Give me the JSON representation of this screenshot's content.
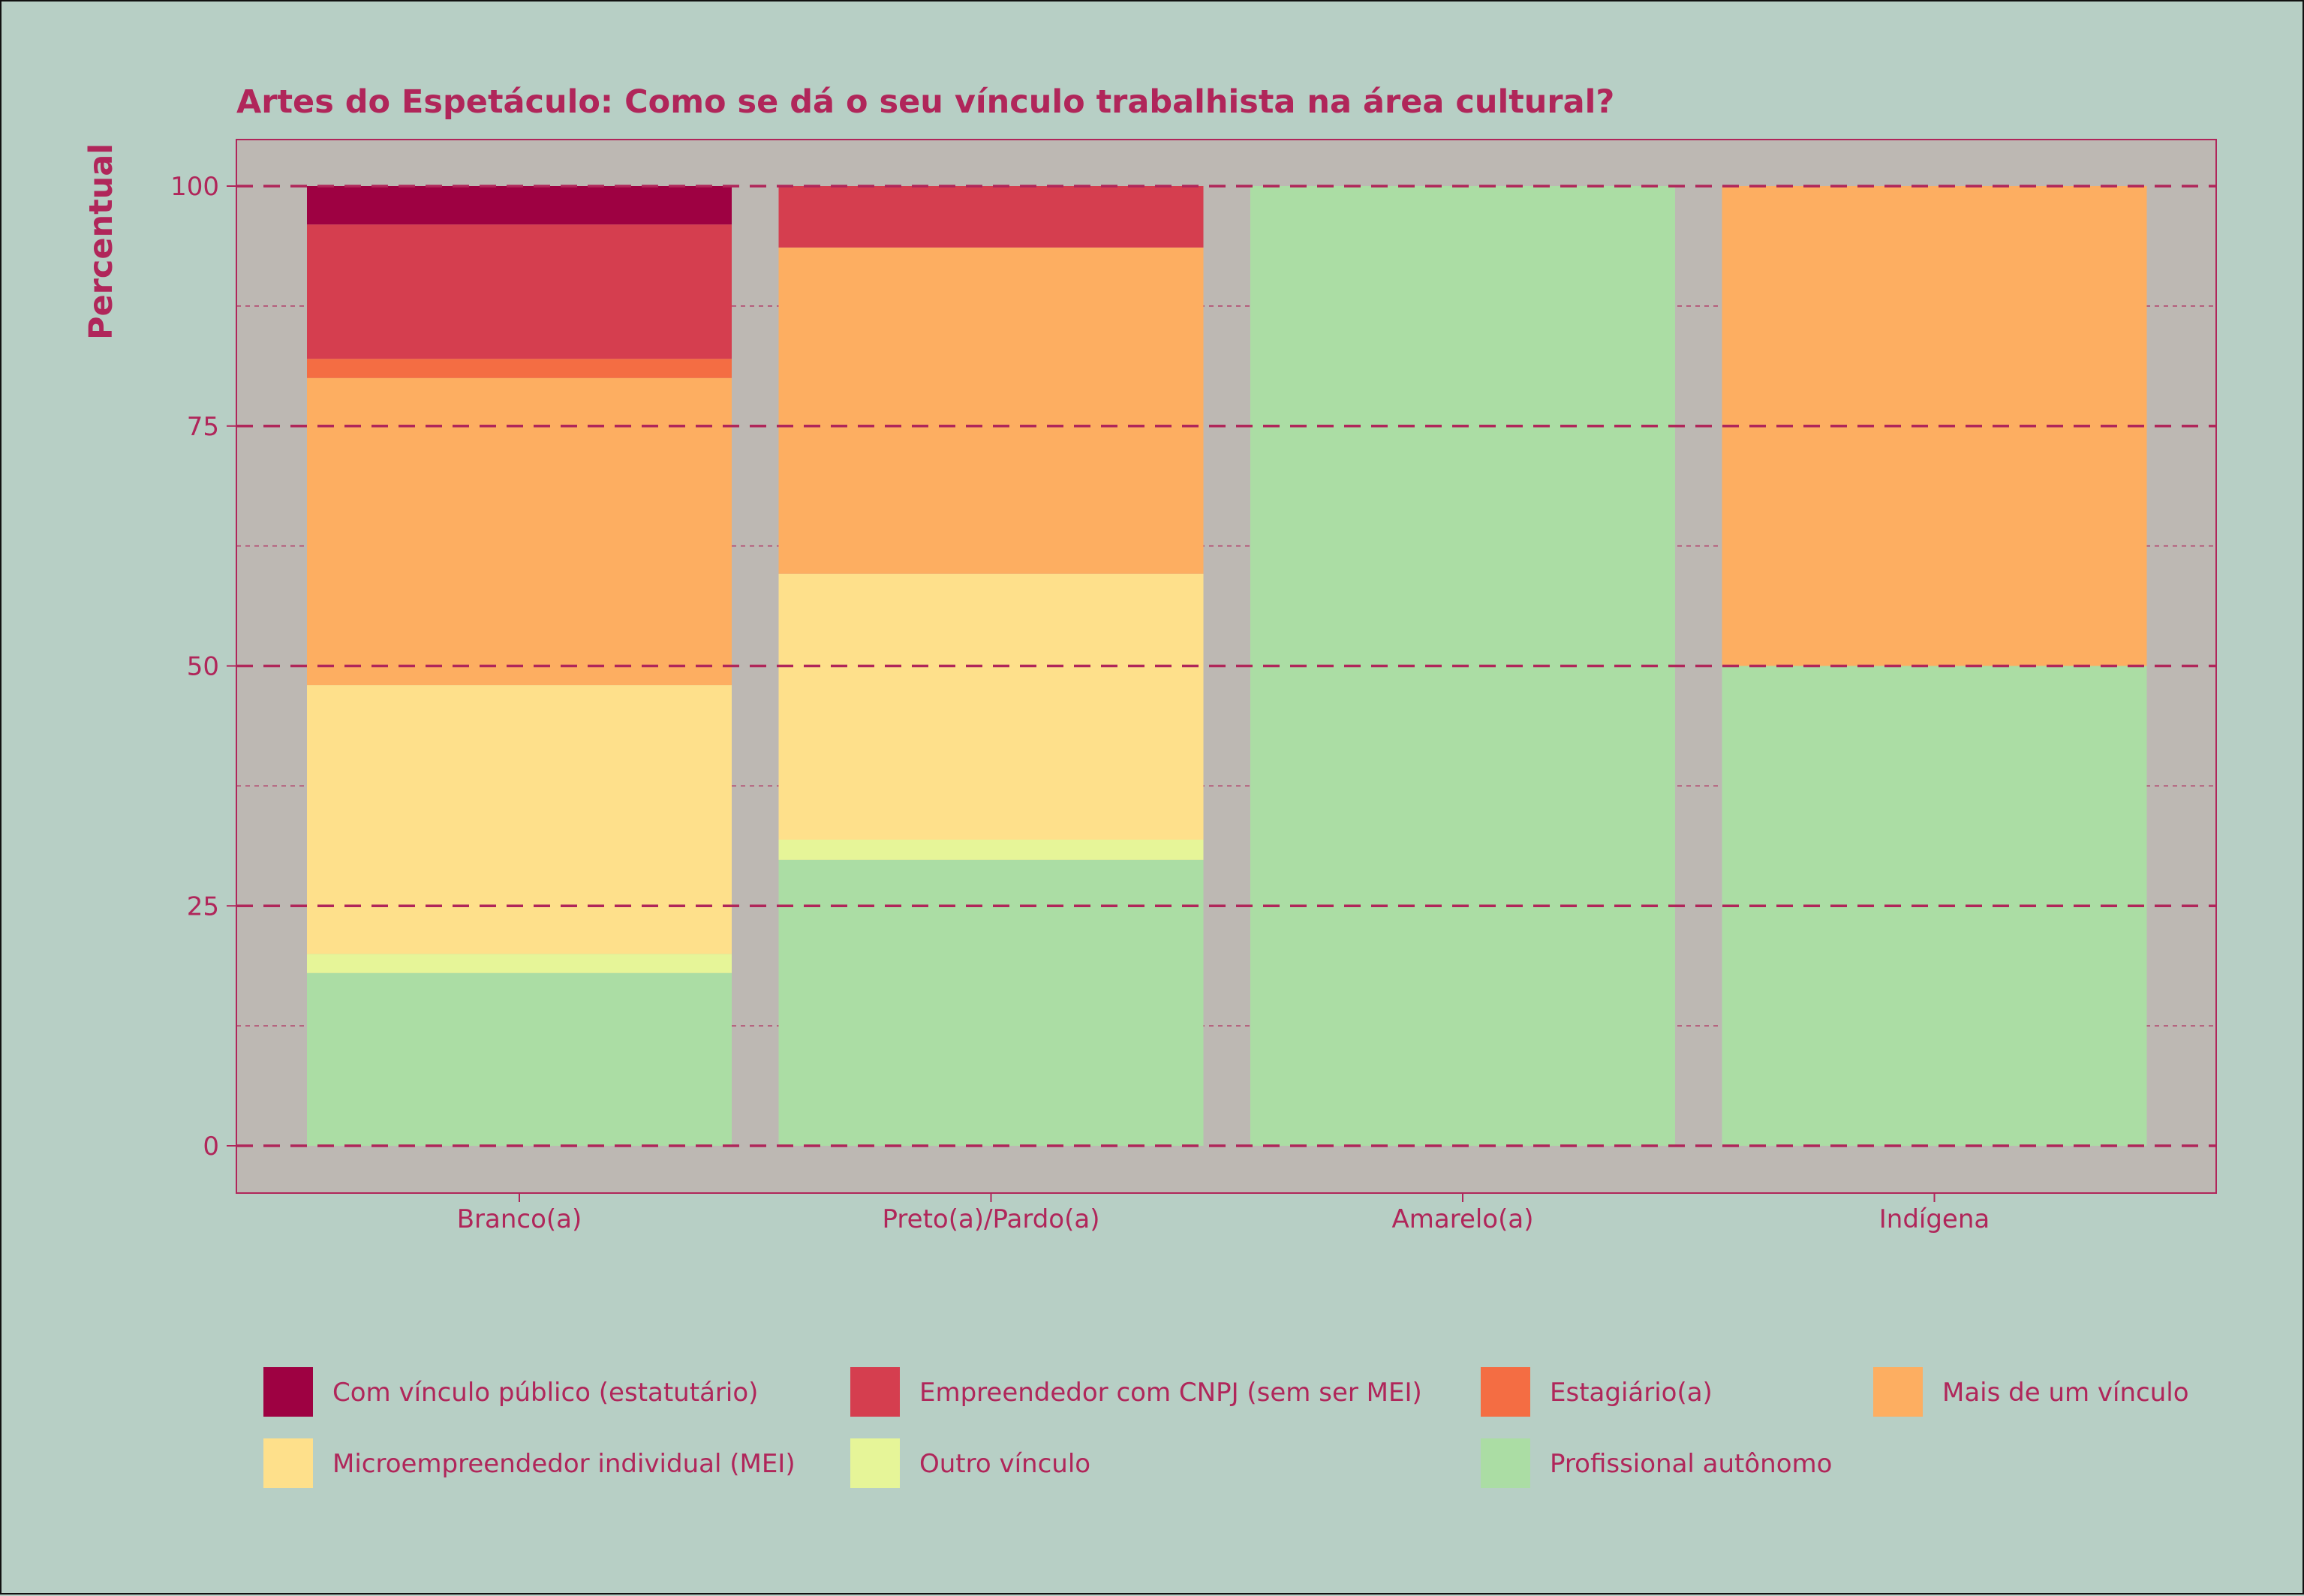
{
  "chart_data": {
    "type": "bar",
    "stacked": true,
    "title": "Artes do Espetáculo: Como se dá o seu vínculo trabalhista na área cultural?",
    "xlabel": "",
    "ylabel": "Percentual",
    "ylim": [
      0,
      100
    ],
    "yticks": [
      "0",
      "25",
      "50",
      "75",
      "100"
    ],
    "grid": true,
    "legend_position": "bottom",
    "categories": [
      "Branco(a)",
      "Preto(a)/Pardo(a)",
      "Amarelo(a)",
      "Indígena"
    ],
    "series": [
      {
        "name": "Profissional autônomo",
        "color": "#abdda4",
        "values": [
          18,
          29.8,
          100,
          50
        ]
      },
      {
        "name": "Outro vínculo",
        "color": "#e6f598",
        "values": [
          2,
          2.1,
          0,
          0
        ]
      },
      {
        "name": "Microempreendedor individual (MEI)",
        "color": "#fee08b",
        "values": [
          28,
          27.7,
          0,
          0
        ]
      },
      {
        "name": "Mais de um vínculo",
        "color": "#fdae61",
        "values": [
          32,
          34,
          0,
          50
        ]
      },
      {
        "name": "Estagiário(a)",
        "color": "#f46d43",
        "values": [
          2,
          0,
          0,
          0
        ]
      },
      {
        "name": "Empreendedor com CNPJ (sem ser MEI)",
        "color": "#d53e4f",
        "values": [
          14,
          6.4,
          0,
          0
        ]
      },
      {
        "name": "Com vínculo público (estatutário)",
        "color": "#9e0142",
        "values": [
          4,
          0,
          0,
          0
        ]
      }
    ],
    "legend_order": [
      "Com vínculo público (estatutário)",
      "Empreendedor com CNPJ (sem ser MEI)",
      "Estagiário(a)",
      "Mais de um vínculo",
      "Microempreendedor individual (MEI)",
      "Outro vínculo",
      "Profissional autônomo"
    ],
    "colors": {
      "background": "#b7cfc5",
      "panel": "#bdb8b3",
      "text": "#b0265a",
      "grid": "#b0265a"
    }
  }
}
